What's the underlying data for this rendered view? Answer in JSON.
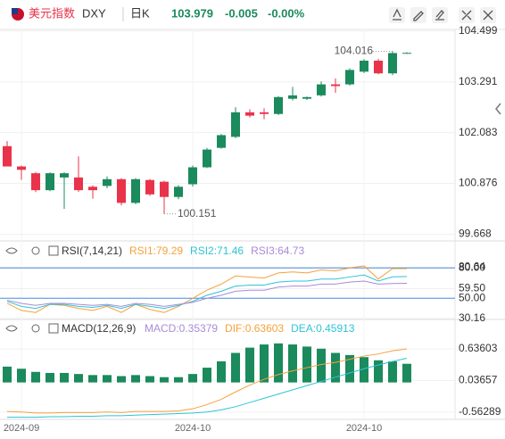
{
  "header": {
    "name": "美元指数",
    "symbol": "DXY",
    "period": "日K",
    "price": "103.979",
    "change": "-0.005",
    "change_pct": "-0.00%"
  },
  "chart_data": [
    {
      "type": "candlestick",
      "categories": [
        null,
        "2024-09",
        null,
        null,
        null,
        null,
        null,
        null,
        null,
        null,
        null,
        null,
        null,
        "2024-10",
        null,
        null,
        null,
        null,
        null,
        null,
        null,
        null,
        null,
        null,
        null,
        "2024-10",
        null,
        null,
        null
      ],
      "open": [
        101.761,
        101.278,
        101.117,
        100.714,
        101.016,
        101.016,
        100.795,
        100.815,
        100.976,
        100.412,
        100.956,
        100.915,
        100.553,
        100.855,
        101.258,
        101.721,
        101.982,
        102.566,
        102.566,
        102.526,
        102.888,
        102.888,
        102.969,
        103.23,
        103.23,
        103.532,
        103.794,
        103.492,
        103.975
      ],
      "high": [
        101.882,
        101.3,
        101.15,
        101.14,
        101.14,
        101.519,
        100.83,
        101.04,
        101.0,
        101.0,
        100.98,
        100.94,
        100.83,
        101.3,
        101.72,
        102.05,
        102.687,
        102.64,
        102.66,
        102.95,
        103.17,
        102.94,
        103.3,
        103.371,
        103.61,
        103.83,
        103.84,
        104.016,
        103.995
      ],
      "low": [
        101.278,
        100.96,
        100.67,
        100.69,
        100.271,
        100.674,
        100.513,
        100.76,
        100.35,
        100.38,
        100.58,
        100.151,
        100.5,
        100.8,
        101.24,
        101.7,
        101.95,
        102.44,
        102.4,
        102.5,
        102.85,
        102.86,
        102.94,
        103.029,
        103.2,
        103.5,
        103.47,
        103.45,
        103.96
      ],
      "close": [
        101.278,
        101.198,
        100.714,
        101.117,
        101.117,
        100.714,
        100.714,
        100.976,
        100.412,
        100.976,
        100.614,
        100.553,
        100.795,
        101.258,
        101.68,
        102.023,
        102.566,
        102.486,
        102.526,
        102.928,
        102.969,
        102.928,
        103.23,
        103.19,
        103.573,
        103.794,
        103.492,
        103.975,
        103.979
      ],
      "up_color": "#1b8a5c",
      "down_color": "#e8334a",
      "ylim": [
        99.55,
        104.6
      ],
      "yticks": [
        104.499,
        103.291,
        102.083,
        100.876,
        99.668
      ],
      "annotations": [
        {
          "value": 104.016,
          "label": "104.016"
        },
        {
          "value": 100.151,
          "label": "100.151"
        }
      ]
    },
    {
      "type": "line",
      "title": "RSI(7,14,21)",
      "series": [
        {
          "name": "RSI1:79.29",
          "color": "#f5a13c",
          "values": [
            45,
            38,
            36,
            44,
            43,
            40,
            38,
            42,
            36,
            44,
            39,
            36,
            42,
            50,
            58,
            64,
            72,
            71,
            70,
            75,
            76,
            75,
            78,
            77,
            80,
            82,
            69,
            79.29,
            79.29
          ]
        },
        {
          "name": "RSI2:71.46",
          "color": "#2ec4d6",
          "values": [
            47,
            42,
            40,
            44,
            44,
            42,
            41,
            43,
            40,
            44,
            42,
            40,
            43,
            47,
            53,
            57,
            62,
            63,
            63,
            66,
            67,
            67,
            69,
            69,
            71,
            73,
            67,
            71.2,
            71.46
          ]
        },
        {
          "name": "RSI3:64.73",
          "color": "#a98bd6",
          "values": [
            48,
            45,
            43,
            45,
            45,
            44,
            43,
            44,
            42,
            45,
            44,
            42,
            44,
            46,
            50,
            53,
            57,
            58,
            58,
            61,
            62,
            62,
            64,
            64,
            66,
            67,
            64,
            64.6,
            64.73
          ]
        }
      ],
      "ylim": [
        30,
        89
      ],
      "yticks": [
        80.64,
        {
          "value": 80,
          "label": "80.00"
        },
        {
          "value": 59.5,
          "label": "59.50"
        },
        {
          "value": 50,
          "label": "50.00"
        },
        30.16
      ],
      "reference_lines": [
        80,
        50
      ],
      "reference_color": "#4a8fe0"
    },
    {
      "type": "macd",
      "title": "MACD(12,26,9)",
      "histogram": {
        "name": "MACD:0.35379",
        "color": "#1b8a5c",
        "values": [
          0.3,
          0.26,
          0.2,
          0.18,
          0.18,
          0.16,
          0.14,
          0.14,
          0.12,
          0.14,
          0.12,
          0.1,
          0.1,
          0.16,
          0.28,
          0.4,
          0.56,
          0.66,
          0.72,
          0.74,
          0.72,
          0.68,
          0.64,
          0.56,
          0.52,
          0.48,
          0.42,
          0.4,
          0.35379
        ]
      },
      "series": [
        {
          "name": "DIF:0.63603",
          "color": "#f5a13c",
          "values": [
            -0.55,
            -0.56,
            -0.58,
            -0.58,
            -0.57,
            -0.57,
            -0.57,
            -0.56,
            -0.57,
            -0.55,
            -0.55,
            -0.55,
            -0.54,
            -0.5,
            -0.42,
            -0.32,
            -0.18,
            -0.05,
            0.06,
            0.15,
            0.22,
            0.28,
            0.34,
            0.38,
            0.44,
            0.5,
            0.54,
            0.6,
            0.63603
          ]
        },
        {
          "name": "DEA:0.45913",
          "color": "#2ec4d6",
          "values": [
            -0.66,
            -0.66,
            -0.66,
            -0.65,
            -0.65,
            -0.64,
            -0.64,
            -0.63,
            -0.63,
            -0.62,
            -0.61,
            -0.6,
            -0.59,
            -0.58,
            -0.56,
            -0.52,
            -0.46,
            -0.38,
            -0.3,
            -0.22,
            -0.14,
            -0.06,
            0.02,
            0.1,
            0.18,
            0.26,
            0.33,
            0.4,
            0.45913
          ]
        }
      ],
      "ylim": [
        -0.7,
        0.89
      ],
      "yticks": [
        0.63603,
        0.03657,
        -0.56289
      ]
    }
  ]
}
